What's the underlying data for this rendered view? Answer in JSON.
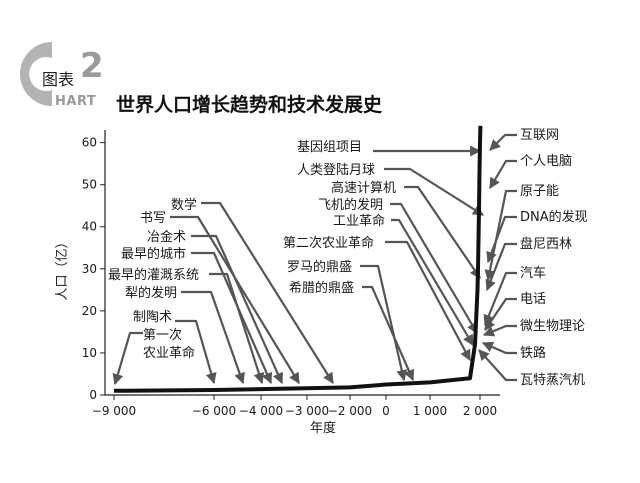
{
  "header": {
    "figure_label": "图表",
    "figure_number": "2",
    "chart_word": "HART",
    "logo_letter": "C",
    "title": "世界人口增长趋势和技术发展史"
  },
  "colors": {
    "line": "#111111",
    "logo": "#b3b3b3",
    "arrow": "#555555"
  },
  "chart_data": {
    "type": "line",
    "title": "世界人口增长趋势和技术发展史",
    "xlabel": "年度",
    "ylabel": "人口（亿）",
    "xlim": [
      -9500,
      2500
    ],
    "ylim": [
      0,
      63
    ],
    "x_ticks": [
      -9000,
      -6000,
      -4000,
      -3000,
      -2000,
      0,
      1000,
      2000
    ],
    "x_tick_labels": [
      "−9 000",
      "−6 000",
      "−4 000",
      "−3 000",
      "−2 000",
      "0",
      "1 000",
      "2 000"
    ],
    "y_ticks": [
      0,
      10,
      20,
      30,
      40,
      50,
      60
    ],
    "grid": false,
    "legend": "none",
    "series": [
      {
        "x": [
          -9000,
          -6000,
          -4000,
          -2000,
          0,
          1000,
          1800,
          1900,
          1950,
          1960,
          1970,
          1980,
          1990,
          2000,
          2010
        ],
        "y": [
          1.0,
          1.2,
          1.4,
          1.8,
          2.5,
          3.0,
          4.0,
          12,
          25,
          30,
          37,
          44,
          53,
          60,
          64
        ]
      }
    ],
    "annotations": [
      {
        "label": "第一次",
        "x": -9000
      },
      {
        "label": "农业革命",
        "x": -9000
      },
      {
        "label": "制陶术",
        "x": -6000
      },
      {
        "label": "犁的发明",
        "x": -4800
      },
      {
        "label": "最早的灌溉系统",
        "x": -4000
      },
      {
        "label": "最早的城市",
        "x": -3800
      },
      {
        "label": "冶金术",
        "x": -3500
      },
      {
        "label": "书写",
        "x": -3200
      },
      {
        "label": "数学",
        "x": -2500
      },
      {
        "label": "罗马的鼎盛",
        "x": 400
      },
      {
        "label": "希腊的鼎盛",
        "x": -400
      },
      {
        "label": "第二次农业革命",
        "x": 1700
      },
      {
        "label": "工业革命",
        "x": 1760
      },
      {
        "label": "飞机的发明",
        "x": 1903
      },
      {
        "label": "高速计算机",
        "x": 1946
      },
      {
        "label": "人类登陆月球",
        "x": 1969
      },
      {
        "label": "基因组项目",
        "x": 1990
      },
      {
        "label": "互联网",
        "x": 1991
      },
      {
        "label": "个人电脑",
        "x": 1980
      },
      {
        "label": "原子能",
        "x": 1945
      },
      {
        "label": "DNA的发现",
        "x": 1953
      },
      {
        "label": "盘尼西林",
        "x": 1928
      },
      {
        "label": "汽车",
        "x": 1886
      },
      {
        "label": "电话",
        "x": 1876
      },
      {
        "label": "微生物理论",
        "x": 1862
      },
      {
        "label": "铁路",
        "x": 1825
      },
      {
        "label": "瓦特蒸汽机",
        "x": 1769
      }
    ]
  }
}
